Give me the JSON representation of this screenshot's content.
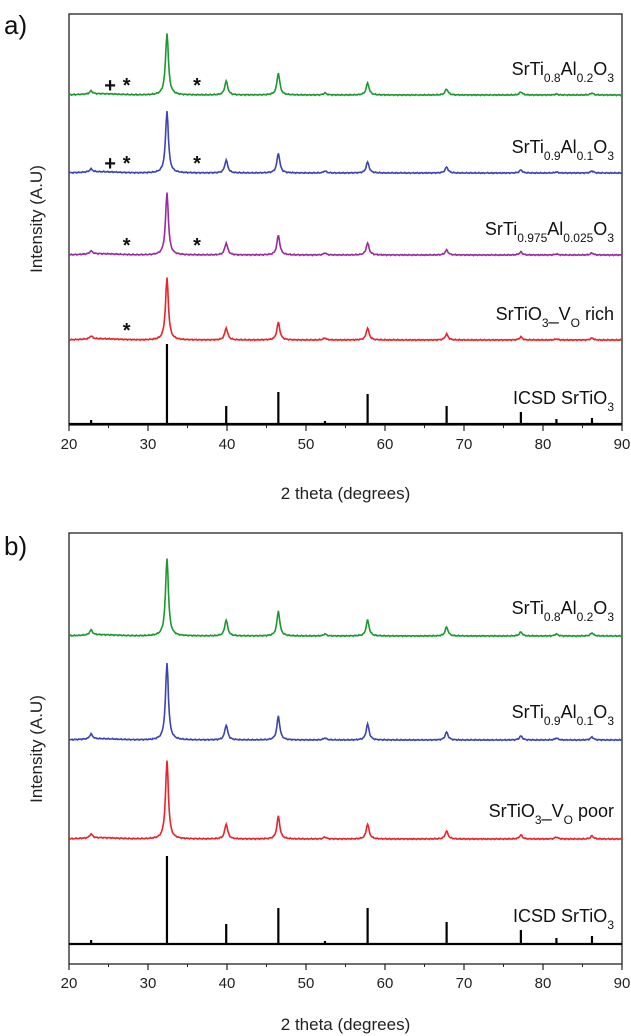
{
  "chart_data": [
    {
      "panel": "a)",
      "type": "line",
      "xlabel": "2 theta (degrees)",
      "ylabel": "Intensity (A.U)",
      "xlim": [
        20,
        90
      ],
      "xticks": [
        20,
        30,
        40,
        50,
        60,
        70,
        80,
        90
      ],
      "grid": false,
      "peaks_x": [
        22.8,
        32.4,
        39.9,
        46.5,
        52.4,
        57.8,
        67.8,
        72.5,
        77.2,
        81.7,
        86.2
      ],
      "series": [
        {
          "name_parts": [
            [
              "SrTi",
              ""
            ],
            [
              "0.8",
              "sub"
            ],
            [
              "Al",
              ""
            ],
            [
              "0.2",
              "sub"
            ],
            [
              "O",
              ""
            ],
            [
              "3",
              "sub"
            ]
          ],
          "color": "#1a9a2e",
          "heights": [
            3,
            62,
            14,
            22,
            2,
            12,
            6,
            0,
            3,
            1,
            2
          ],
          "markers": [
            {
              "symbol": "+",
              "x": 25.2
            },
            {
              "symbol": "*",
              "x": 27.3
            },
            {
              "symbol": "*",
              "x": 36.2
            }
          ]
        },
        {
          "name_parts": [
            [
              "SrTi",
              ""
            ],
            [
              "0.9",
              "sub"
            ],
            [
              "Al",
              ""
            ],
            [
              "0.1",
              "sub"
            ],
            [
              "O",
              ""
            ],
            [
              "3",
              "sub"
            ]
          ],
          "color": "#3a45b0",
          "heights": [
            3,
            62,
            13,
            20,
            2,
            11,
            6,
            0,
            3,
            1,
            2
          ],
          "markers": [
            {
              "symbol": "+",
              "x": 25.2
            },
            {
              "symbol": "*",
              "x": 27.3
            },
            {
              "symbol": "*",
              "x": 36.2
            }
          ]
        },
        {
          "name_parts": [
            [
              "SrTi",
              ""
            ],
            [
              "0.975",
              "sub"
            ],
            [
              "Al",
              ""
            ],
            [
              "0.025",
              "sub"
            ],
            [
              "O",
              ""
            ],
            [
              "3",
              "sub"
            ]
          ],
          "color": "#9a2aa0",
          "heights": [
            3,
            62,
            12,
            20,
            2,
            12,
            5,
            0,
            3,
            1,
            2
          ],
          "markers": [
            {
              "symbol": "*",
              "x": 27.3
            },
            {
              "symbol": "*",
              "x": 36.2
            }
          ]
        },
        {
          "name_parts": [
            [
              "SrTiO",
              ""
            ],
            [
              "3",
              "sub"
            ],
            [
              "_V",
              ""
            ],
            [
              "O",
              "sub"
            ],
            [
              " rich",
              ""
            ]
          ],
          "color": "#e8232a",
          "heights": [
            3,
            62,
            12,
            18,
            2,
            12,
            6,
            0,
            3,
            1,
            2
          ],
          "markers": [
            {
              "symbol": "*",
              "x": 27.3
            }
          ]
        },
        {
          "name_parts": [
            [
              "ICSD SrTiO",
              ""
            ],
            [
              "3",
              "sub"
            ]
          ],
          "color": "#000000",
          "heights": [
            4,
            80,
            18,
            32,
            3,
            30,
            18,
            1,
            12,
            5,
            6
          ],
          "markers": []
        }
      ]
    },
    {
      "panel": "b)",
      "type": "line",
      "xlabel": "2 theta (degrees)",
      "ylabel": "Intensity (A.U)",
      "xlim": [
        20,
        90
      ],
      "xticks": [
        20,
        30,
        40,
        50,
        60,
        70,
        80,
        90
      ],
      "grid": false,
      "peaks_x": [
        22.8,
        32.4,
        39.9,
        46.5,
        52.4,
        57.8,
        67.8,
        72.5,
        77.2,
        81.7,
        86.2
      ],
      "series": [
        {
          "name_parts": [
            [
              "SrTi",
              ""
            ],
            [
              "0.8",
              "sub"
            ],
            [
              "Al",
              ""
            ],
            [
              "0.2",
              "sub"
            ],
            [
              "O",
              ""
            ],
            [
              "3",
              "sub"
            ]
          ],
          "color": "#1a9a2e",
          "heights": [
            5,
            78,
            16,
            25,
            2,
            16,
            9,
            0,
            4,
            2,
            3
          ],
          "markers": []
        },
        {
          "name_parts": [
            [
              "SrTi",
              ""
            ],
            [
              "0.9",
              "sub"
            ],
            [
              "Al",
              ""
            ],
            [
              "0.1",
              "sub"
            ],
            [
              "O",
              ""
            ],
            [
              "3",
              "sub"
            ]
          ],
          "color": "#3a45b0",
          "heights": [
            5,
            77,
            15,
            24,
            2,
            16,
            8,
            0,
            4,
            2,
            3
          ],
          "markers": []
        },
        {
          "name_parts": [
            [
              "SrTiO",
              ""
            ],
            [
              "3",
              "sub"
            ],
            [
              "_V",
              ""
            ],
            [
              "O",
              "sub"
            ],
            [
              " poor",
              ""
            ]
          ],
          "color": "#e8232a",
          "heights": [
            4,
            78,
            15,
            23,
            2,
            15,
            8,
            0,
            4,
            2,
            3
          ],
          "markers": []
        },
        {
          "name_parts": [
            [
              "ICSD SrTiO",
              ""
            ],
            [
              "3",
              "sub"
            ]
          ],
          "color": "#000000",
          "heights": [
            4,
            88,
            20,
            36,
            3,
            36,
            22,
            1,
            14,
            6,
            8
          ],
          "markers": []
        }
      ]
    }
  ]
}
